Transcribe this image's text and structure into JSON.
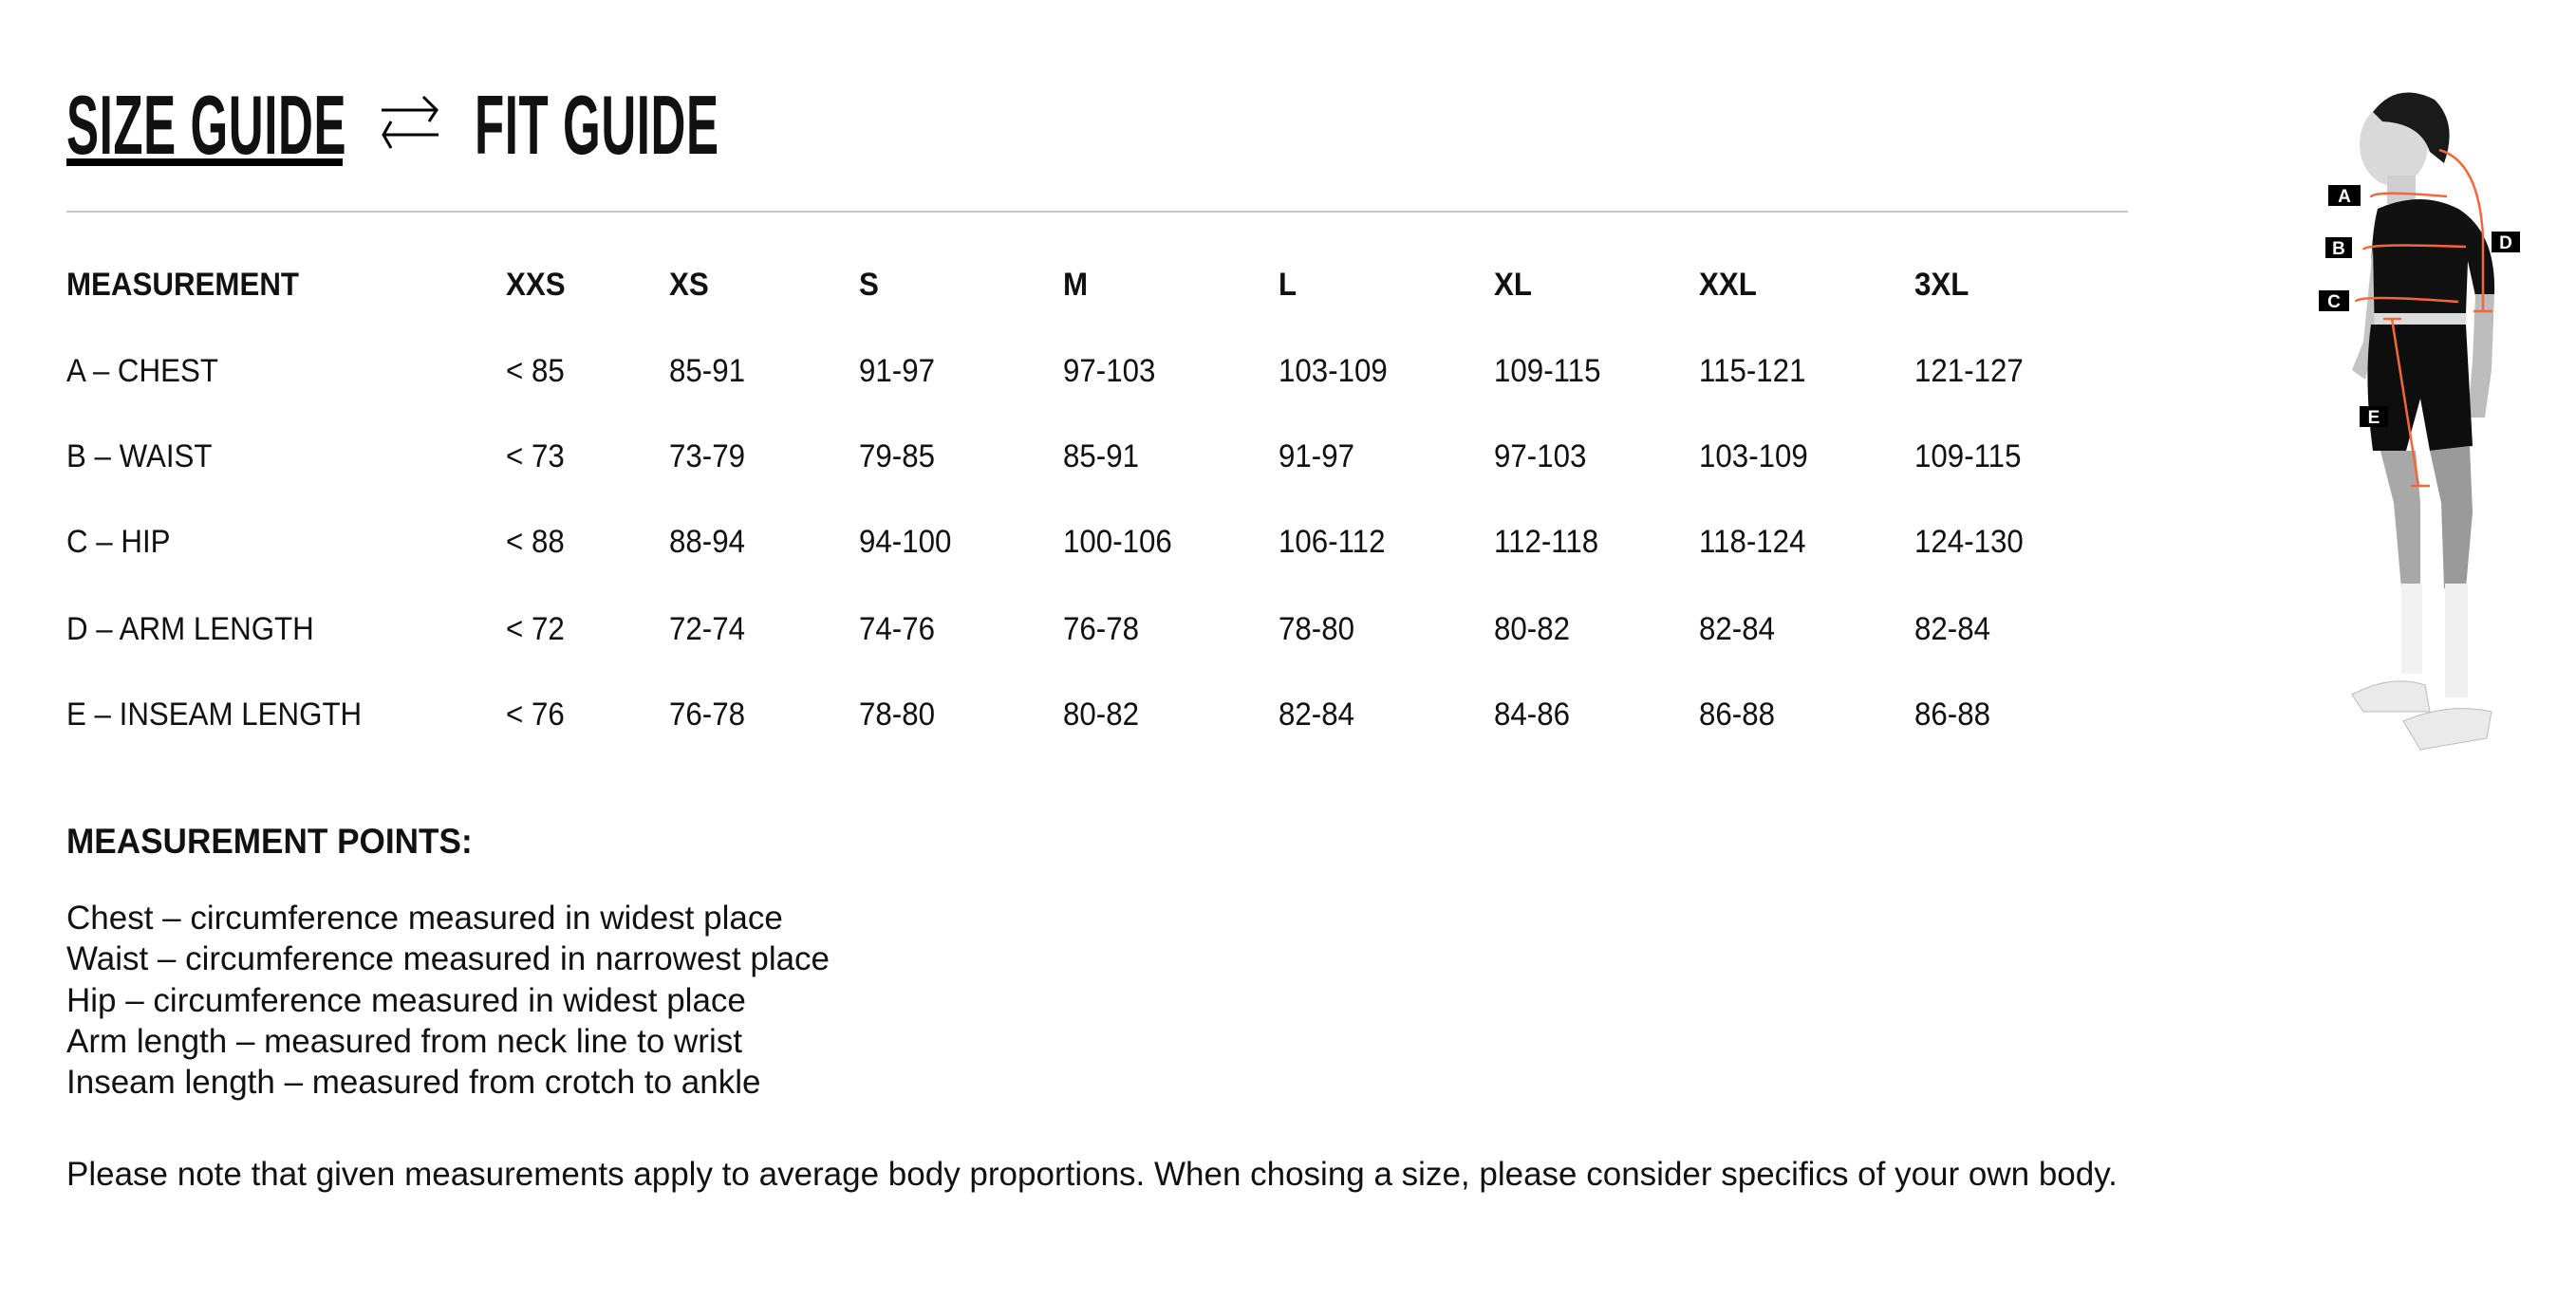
{
  "tabs": {
    "size_guide": "SIZE GUIDE",
    "fit_guide": "FIT GUIDE",
    "active": "size_guide",
    "swap_icon": "swap-arrows-icon"
  },
  "table": {
    "headers": [
      "MEASUREMENT",
      "XXS",
      "XS",
      "S",
      "M",
      "L",
      "XL",
      "XXL",
      "3XL"
    ],
    "rows": [
      [
        "A – CHEST",
        "< 85",
        "85-91",
        "91-97",
        "97-103",
        "103-109",
        "109-115",
        "115-121",
        "121-127"
      ],
      [
        "B – WAIST",
        "< 73",
        "73-79",
        "79-85",
        "85-91",
        "91-97",
        "97-103",
        "103-109",
        "109-115"
      ],
      [
        "C – HIP",
        "< 88",
        "88-94",
        "94-100",
        "100-106",
        "106-112",
        "112-118",
        "118-124",
        "124-130"
      ],
      [
        "D – ARM LENGTH",
        "< 72",
        "72-74",
        "74-76",
        "76-78",
        "78-80",
        "80-82",
        "82-84",
        "82-84"
      ],
      [
        "E – INSEAM LENGTH",
        "< 76",
        "76-78",
        "78-80",
        "80-82",
        "82-84",
        "84-86",
        "86-88",
        "86-88"
      ]
    ]
  },
  "measurement_points": {
    "title": "MEASUREMENT POINTS:",
    "lines": [
      "Chest – circumference measured in widest place",
      "Waist – circumference measured in narrowest place",
      "Hip – circumference measured in widest place",
      "Arm length – measured from neck line to wrist",
      "Inseam length – measured from crotch to ankle"
    ]
  },
  "note": "Please note that given measurements apply to average body proportions. When chosing a size, please consider specifics of your own body.",
  "figure": {
    "labels": [
      "A",
      "B",
      "C",
      "D",
      "E"
    ],
    "accent_color": "#f2683a"
  }
}
